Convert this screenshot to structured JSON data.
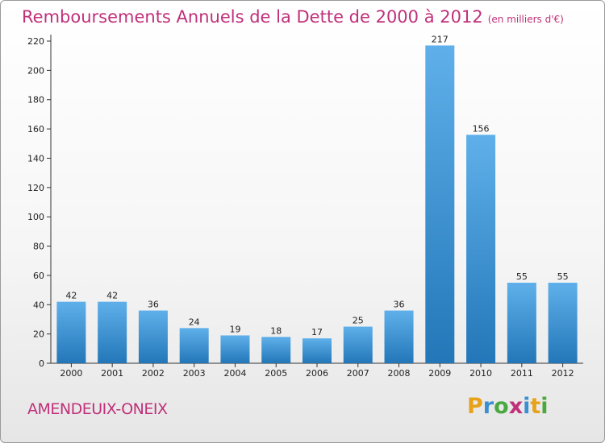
{
  "header": {
    "title": "Remboursements Annuels de la Dette de 2000 à 2012",
    "unit": "(en milliers d'€)"
  },
  "footer": {
    "commune": "AMENDEUIX-ONEIX",
    "logo_letters": [
      "P",
      "r",
      "o",
      "x",
      "i",
      "t",
      "i"
    ],
    "logo_colors": [
      "#e8a21a",
      "#3b8fd0",
      "#4aa840",
      "#c0307a",
      "#3b8fd0",
      "#e8a21a",
      "#4aa840"
    ]
  },
  "chart_data": {
    "type": "bar",
    "categories": [
      "2000",
      "2001",
      "2002",
      "2003",
      "2004",
      "2005",
      "2006",
      "2007",
      "2008",
      "2009",
      "2010",
      "2011",
      "2012"
    ],
    "values": [
      42,
      42,
      36,
      24,
      19,
      18,
      17,
      25,
      36,
      217,
      156,
      55,
      55
    ],
    "title": "Remboursements Annuels de la Dette de 2000 à 2012",
    "ylim": [
      0,
      220
    ],
    "yticks": [
      0,
      20,
      40,
      60,
      80,
      100,
      120,
      140,
      160,
      180,
      200,
      220
    ],
    "grid": false,
    "colors": {
      "bar_light": "#5fb0ea",
      "bar_dark": "#2377b8",
      "axis": "#333333",
      "text": "#222222"
    }
  }
}
